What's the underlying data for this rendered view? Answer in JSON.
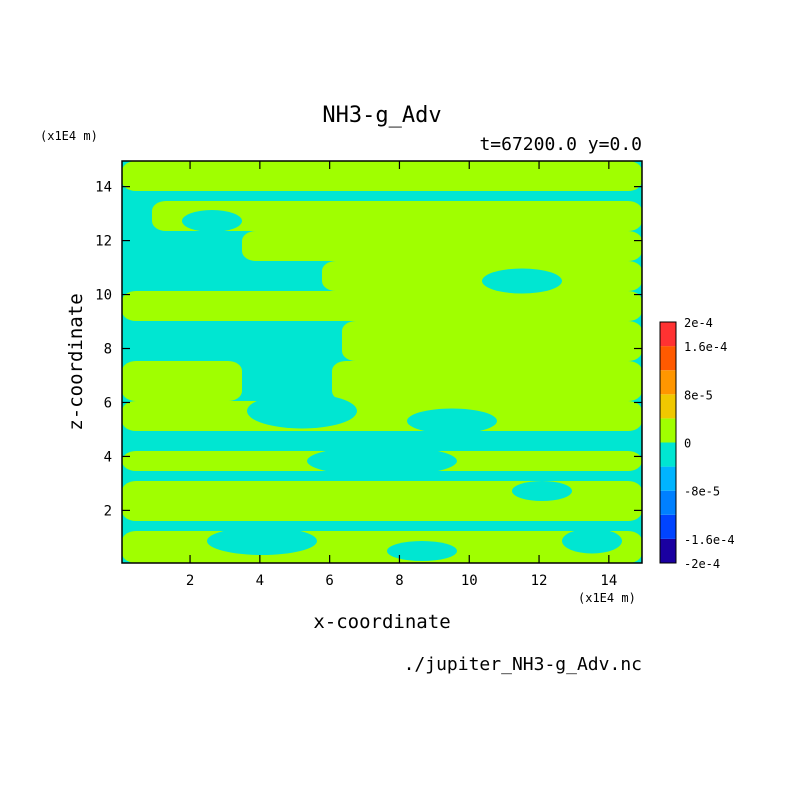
{
  "chart_data": {
    "type": "heatmap",
    "title": "NH3-g_Adv",
    "subtitle": "t=67200.0 y=0.0",
    "xlabel": "x-coordinate",
    "ylabel": "z-coordinate",
    "x_unit": "(x1E4 m)",
    "y_unit": "(x1E4 m)",
    "xlim": [
      0.05,
      14.95
    ],
    "ylim": [
      0.05,
      14.95
    ],
    "x_ticks": [
      2,
      4,
      6,
      8,
      10,
      12,
      14
    ],
    "y_ticks": [
      2,
      4,
      6,
      8,
      10,
      12,
      14
    ],
    "x_tick_labels": [
      "2",
      "4",
      "6",
      "8",
      "10",
      "12",
      "14"
    ],
    "y_tick_labels": [
      "2",
      "4",
      "6",
      "8",
      "10",
      "12",
      "14"
    ],
    "colorbar": {
      "levels": [
        -0.0002,
        -0.00016,
        -0.00012,
        -8e-05,
        -4e-05,
        0,
        4e-05,
        8e-05,
        0.00012,
        0.00016,
        0.0002
      ],
      "colors": [
        "#1a00a0",
        "#0044ff",
        "#0080ff",
        "#00b4ff",
        "#00e6d2",
        "#a0ff00",
        "#f0c800",
        "#ff9600",
        "#ff5a00",
        "#ff3232"
      ],
      "tick_values": [
        -0.0002,
        -0.00016,
        -8e-05,
        0,
        8e-05,
        0.00016,
        0.0002
      ],
      "tick_labels": [
        "-2e-4",
        "-1.6e-4",
        "-8e-5",
        "0",
        "8e-5",
        "1.6e-4",
        "2e-4"
      ]
    },
    "field_colors": {
      "negative": "#00e6d2",
      "positive": "#a0ff00",
      "contour": "#000000"
    },
    "legend_position": "right",
    "source_file": "./jupiter_NH3-g_Adv.nc"
  }
}
